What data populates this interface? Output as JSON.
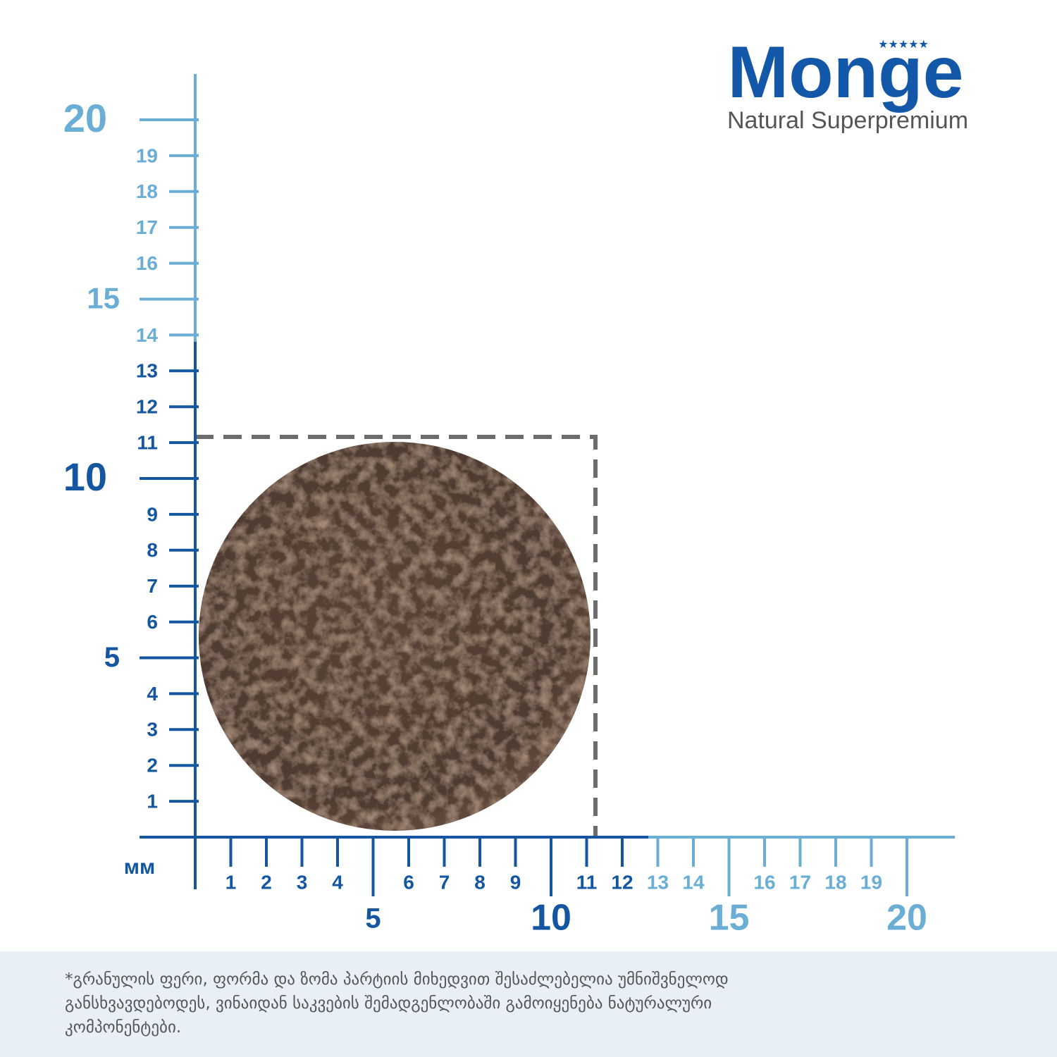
{
  "logo": {
    "brand": "Monge",
    "tagline": "Natural Superpremium"
  },
  "ruler": {
    "unit": "мм",
    "x_ticks": [
      1,
      2,
      3,
      4,
      5,
      6,
      7,
      8,
      9,
      10,
      11,
      12,
      13,
      14,
      15,
      16,
      17,
      18,
      19,
      20
    ],
    "y_ticks": [
      1,
      2,
      3,
      4,
      5,
      6,
      7,
      8,
      9,
      10,
      11,
      12,
      13,
      14,
      15,
      16,
      17,
      18,
      19,
      20
    ]
  },
  "footnote": [
    "*გრანულის ფერი, ფორმა და ზომა პარტიის მიხედვით შესაძლებელია უმნიშვნელოდ",
    "განსხვავდებოდეს,  ვინაიდან საკვების შემადგენლობაში გამოიყენება ნატურალური",
    "კომპონენტები."
  ]
}
